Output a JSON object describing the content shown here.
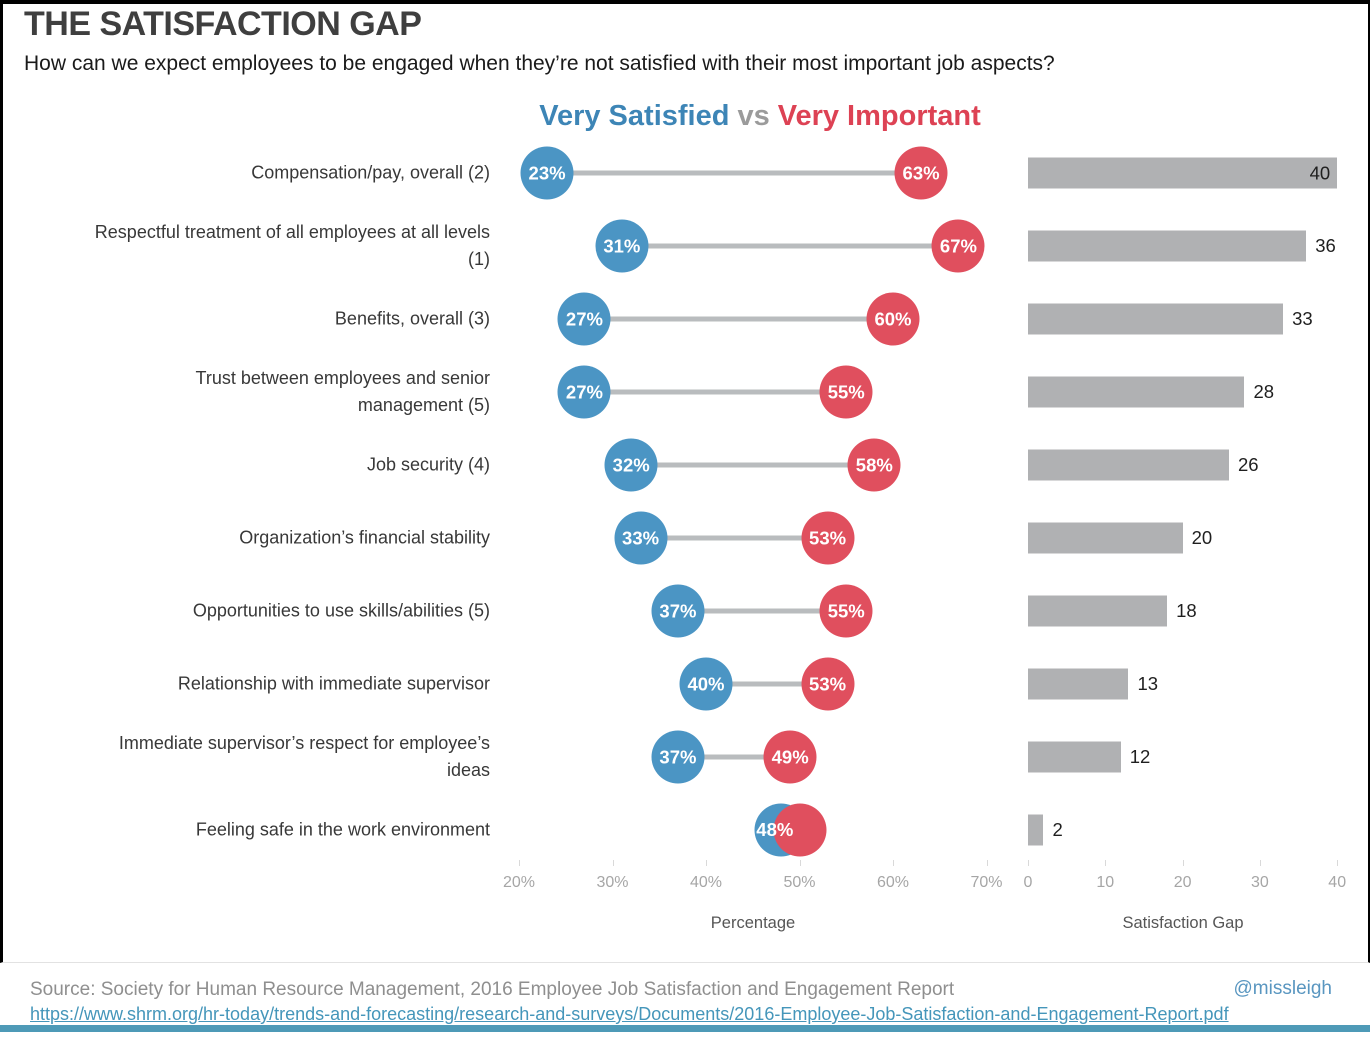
{
  "page": {
    "title": "THE SATISFACTION GAP",
    "subtitle": "How can we expect employees to be engaged when they’re not satisfied with their most important job aspects?",
    "legend": {
      "satisfied": "Very Satisfied",
      "vs": "vs",
      "important": "Very Important"
    }
  },
  "chart_data": {
    "type": "dumbbell+bar",
    "categories": [
      "Compensation/pay, overall (2)",
      "Respectful treatment of all employees at all levels\n(1)",
      "Benefits, overall (3)",
      "Trust between employees and senior\nmanagement (5)",
      "Job security (4)",
      "Organization’s financial stability",
      "Opportunities to use skills/abilities (5)",
      "Relationship with immediate supervisor",
      "Immediate supervisor’s respect for employee’s\nideas",
      "Feeling safe in the work environment"
    ],
    "series": [
      {
        "name": "Very Satisfied",
        "values": [
          23,
          31,
          27,
          27,
          32,
          33,
          37,
          40,
          37,
          48
        ]
      },
      {
        "name": "Very Important",
        "values": [
          63,
          67,
          60,
          55,
          58,
          53,
          55,
          53,
          49,
          50
        ]
      },
      {
        "name": "Satisfaction Gap",
        "values": [
          40,
          36,
          33,
          28,
          26,
          20,
          18,
          13,
          12,
          2
        ]
      }
    ],
    "satisfied_labels": [
      "23%",
      "31%",
      "27%",
      "27%",
      "32%",
      "33%",
      "37%",
      "40%",
      "37%",
      "48%"
    ],
    "important_labels": [
      "63%",
      "67%",
      "60%",
      "55%",
      "58%",
      "53%",
      "55%",
      "53%",
      "49%",
      ""
    ],
    "gap_labels": [
      "40",
      "36",
      "33",
      "28",
      "26",
      "20",
      "18",
      "13",
      "12",
      "2"
    ],
    "left_axis": {
      "label": "Percentage",
      "ticks": [
        "20%",
        "30%",
        "40%",
        "50%",
        "60%",
        "70%"
      ],
      "values": [
        20,
        30,
        40,
        50,
        60,
        70
      ],
      "range": [
        20,
        70
      ]
    },
    "right_axis": {
      "label": "Satisfaction Gap",
      "ticks": [
        "0",
        "10",
        "20",
        "30",
        "40"
      ],
      "values": [
        0,
        10,
        20,
        30,
        40
      ],
      "range": [
        0,
        40
      ]
    },
    "legend_position": "top-center",
    "grid": false,
    "colors": {
      "satisfied": "#4b95c4",
      "important": "#e04f5e",
      "bar": "#b0b1b3"
    }
  },
  "footer": {
    "source": "Source: Society for Human Resource Management, 2016 Employee Job Satisfaction and Engagement Report",
    "handle": "@missleigh",
    "url": "https://www.shrm.org/hr-today/trends-and-forecasting/research-and-surveys/Documents/2016-Employee-Job-Satisfaction-and-Engagement-Report.pdf"
  }
}
